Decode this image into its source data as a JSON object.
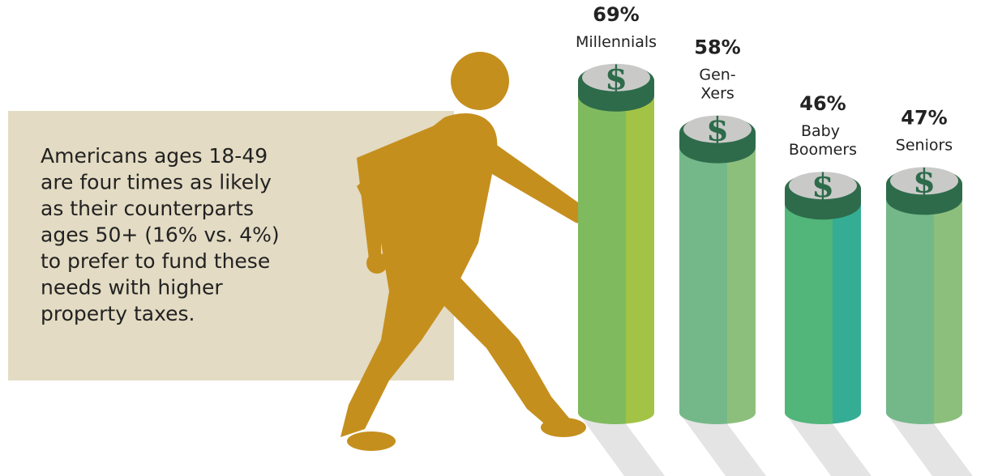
{
  "note": [
    "Americans ages 18-49",
    "are four times as likely",
    "as their counterparts",
    "ages 50+ (16% vs. 4%)",
    "to prefer to fund these",
    "needs with higher",
    "property taxes."
  ],
  "coin_symbol": "$",
  "chart_data": {
    "type": "bar",
    "categories": [
      "Millennials",
      "Gen-Xers",
      "Baby Boomers",
      "Seniors"
    ],
    "values": [
      69,
      58,
      46,
      47
    ],
    "value_labels": [
      "69%",
      "58%",
      "46%",
      "47%"
    ],
    "colors": [
      [
        "#7fba5e",
        "#a3c347"
      ],
      [
        "#74b88a",
        "#8dbf7c"
      ],
      [
        "#52b57a",
        "#35ad94"
      ],
      [
        "#74b88a",
        "#8dbf7c"
      ]
    ]
  }
}
